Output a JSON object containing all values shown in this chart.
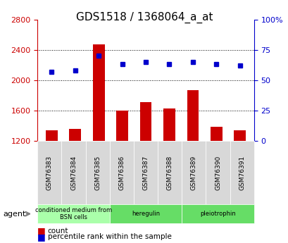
{
  "title": "GDS1518 / 1368064_a_at",
  "categories": [
    "GSM76383",
    "GSM76384",
    "GSM76385",
    "GSM76386",
    "GSM76387",
    "GSM76388",
    "GSM76389",
    "GSM76390",
    "GSM76391"
  ],
  "counts": [
    1340,
    1360,
    2470,
    1600,
    1710,
    1630,
    1870,
    1390,
    1340
  ],
  "percentiles": [
    57,
    58,
    70,
    63,
    65,
    63,
    65,
    63,
    62
  ],
  "bar_color": "#cc0000",
  "dot_color": "#0000cc",
  "ylim_left": [
    1200,
    2800
  ],
  "ylim_right": [
    0,
    100
  ],
  "yticks_left": [
    1200,
    1600,
    2000,
    2400,
    2800
  ],
  "yticks_right": [
    0,
    25,
    50,
    75,
    100
  ],
  "yticklabels_right": [
    "0",
    "25",
    "50",
    "75",
    "100%"
  ],
  "groups": [
    {
      "label": "conditioned medium from\nBSN cells",
      "start": 0,
      "end": 3,
      "color": "#ccffcc"
    },
    {
      "label": "heregulin",
      "start": 3,
      "end": 6,
      "color": "#66ee66"
    },
    {
      "label": "pleiotrophin",
      "start": 6,
      "end": 9,
      "color": "#66ee66"
    }
  ],
  "agent_label": "agent",
  "legend_count_label": "count",
  "legend_pct_label": "percentile rank within the sample",
  "grid_color": "#000000",
  "bg_color": "#ffffff",
  "plot_bg": "#ffffff",
  "xlabel_color": "#333333",
  "tick_color_left": "#cc0000",
  "tick_color_right": "#0000cc"
}
